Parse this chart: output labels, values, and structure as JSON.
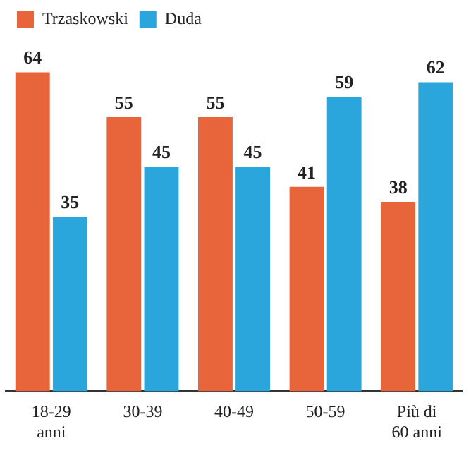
{
  "chart_data": {
    "type": "bar",
    "categories": [
      "18-29\nanni",
      "30-39",
      "40-49",
      "50-59",
      "Più di\n60 anni"
    ],
    "series": [
      {
        "name": "Trzaskowski",
        "color": "#e8643a",
        "values": [
          64,
          55,
          55,
          41,
          38
        ]
      },
      {
        "name": "Duda",
        "color": "#2aa6dc",
        "values": [
          35,
          45,
          45,
          59,
          62
        ]
      }
    ],
    "tick_labels": "x",
    "data_labels": true,
    "grid": false,
    "legend": "top left"
  }
}
